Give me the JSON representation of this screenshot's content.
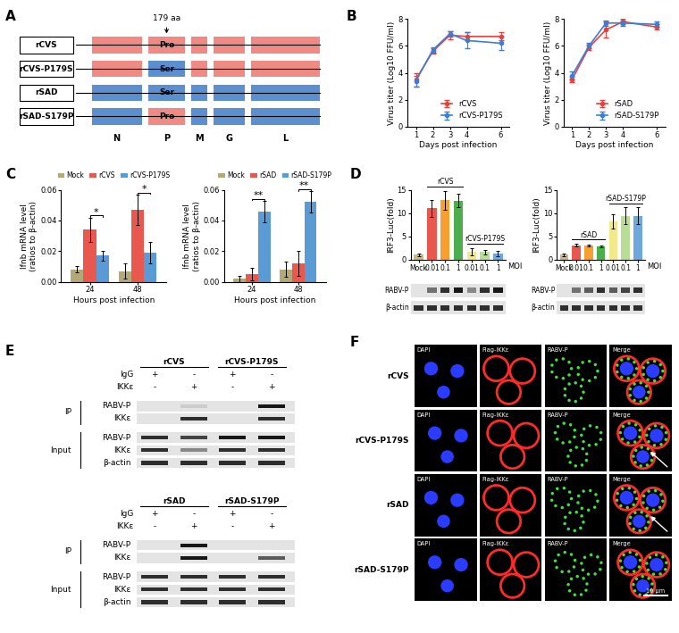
{
  "panel_labels": [
    "A",
    "B",
    "C",
    "D",
    "E",
    "F"
  ],
  "schematic": {
    "genes": [
      "N",
      "P",
      "M",
      "G",
      "L"
    ],
    "site_gene": "P",
    "site_label": "179 aa",
    "constructs": [
      {
        "name": "rCVS",
        "color": "#f08a84",
        "site": "Pro",
        "site_color": "#f08a84"
      },
      {
        "name": "rCVS-P179S",
        "color": "#f08a84",
        "site": "Ser",
        "site_color": "#5b8fd0"
      },
      {
        "name": "rSAD",
        "color": "#5b8fd0",
        "site": "Ser",
        "site_color": "#5b8fd0"
      },
      {
        "name": "rSAD-S179P",
        "color": "#5b8fd0",
        "site": "Pro",
        "site_color": "#f08a84"
      }
    ]
  },
  "chart_data": [
    {
      "type": "line",
      "x": [
        1,
        2,
        3,
        4,
        6
      ],
      "xlim": [
        0.5,
        6.5
      ],
      "xticks": [
        1,
        2,
        3,
        4,
        6
      ],
      "ylim": [
        0,
        8
      ],
      "yticks": [
        0,
        2,
        4,
        6,
        8
      ],
      "xlabel": "Days post infection",
      "ylabel": "Virus titer (Log10 FFU/ml)",
      "legend": "lower right",
      "series": [
        {
          "name": "rCVS",
          "color": "#e8403a",
          "marker": "circle",
          "values": [
            3.5,
            5.6,
            6.8,
            6.7,
            6.7
          ],
          "errors": [
            0.5,
            0.2,
            0.3,
            0.3,
            0.3
          ]
        },
        {
          "name": "rCVS-P179S",
          "color": "#3a7fd5",
          "marker": "circle",
          "values": [
            3.4,
            5.7,
            6.9,
            6.4,
            6.2
          ],
          "errors": [
            0.4,
            0.2,
            0.2,
            0.6,
            0.5
          ]
        }
      ]
    },
    {
      "type": "line",
      "x": [
        1,
        2,
        3,
        4,
        6
      ],
      "xlim": [
        0.5,
        6.5
      ],
      "xticks": [
        1,
        2,
        3,
        4,
        6
      ],
      "ylim": [
        0,
        8
      ],
      "yticks": [
        0,
        2,
        4,
        6,
        8
      ],
      "xlabel": "Days post infection",
      "ylabel": "Virus titer (Log10 FFU/ml)",
      "legend": "lower right",
      "series": [
        {
          "name": "rSAD",
          "color": "#e8403a",
          "marker": "circle",
          "values": [
            3.5,
            5.9,
            7.2,
            7.8,
            7.4
          ],
          "errors": [
            0.2,
            0.2,
            0.6,
            0.2,
            0.2
          ]
        },
        {
          "name": "rSAD-S179P",
          "color": "#3a7fd5",
          "marker": "circle",
          "values": [
            3.8,
            6.0,
            7.7,
            7.7,
            7.6
          ],
          "errors": [
            0.3,
            0.2,
            0.2,
            0.2,
            0.2
          ]
        }
      ]
    },
    {
      "type": "bar",
      "categories": [
        "24",
        "48"
      ],
      "ylim": [
        0,
        0.06
      ],
      "yticks": [
        {
          "value": 0,
          "label": "0.00"
        },
        0.02,
        0.04,
        0.06
      ],
      "xlabel": "Hours post infection",
      "ylabel": "Ifnb mRNA level\n(ratios to β-actin)",
      "legend": "upper center",
      "series": [
        {
          "name": "Mock",
          "color": "#b5a878",
          "values": [
            0.008,
            0.007
          ],
          "errors": [
            0.002,
            0.005
          ]
        },
        {
          "name": "rCVS",
          "color": "#e8584e",
          "values": [
            0.034,
            0.047
          ],
          "errors": [
            0.008,
            0.01
          ]
        },
        {
          "name": "rCVS-P179S",
          "color": "#5b9bd5",
          "values": [
            0.017,
            0.019
          ],
          "errors": [
            0.003,
            0.007
          ]
        }
      ],
      "significance": [
        {
          "category": "24",
          "text": "*"
        },
        {
          "category": "48",
          "text": "*"
        }
      ]
    },
    {
      "type": "bar",
      "categories": [
        "24",
        "48"
      ],
      "ylim": [
        0,
        0.06
      ],
      "yticks": [
        {
          "value": 0,
          "label": "0.00"
        },
        0.02,
        0.04,
        0.06
      ],
      "xlabel": "Hours post infection",
      "ylabel": "Ifnb mRNA level\n(ratios to β-actin)",
      "legend": "upper center",
      "series": [
        {
          "name": "Mock",
          "color": "#b5a878",
          "values": [
            0.002,
            0.008
          ],
          "errors": [
            0.002,
            0.005
          ]
        },
        {
          "name": "rSAD",
          "color": "#e8584e",
          "values": [
            0.005,
            0.012
          ],
          "errors": [
            0.004,
            0.008
          ]
        },
        {
          "name": "rSAD-S179P",
          "color": "#5b9bd5",
          "values": [
            0.046,
            0.052
          ],
          "errors": [
            0.007,
            0.007
          ]
        }
      ],
      "significance": [
        {
          "category": "24",
          "text": "**"
        },
        {
          "category": "48",
          "text": "**"
        }
      ]
    },
    {
      "type": "bar",
      "categories": [
        "Mock",
        "0.01",
        "0.1",
        "1",
        "0.01",
        "0.1",
        "1"
      ],
      "groups": [
        null,
        "rCVS",
        "rCVS",
        "rCVS",
        "rCVS-P179S",
        "rCVS-P179S",
        "rCVS-P179S"
      ],
      "values": [
        1.0,
        11.0,
        12.8,
        12.7,
        1.7,
        1.6,
        1.3
      ],
      "errors": [
        0.3,
        1.8,
        2.0,
        1.5,
        0.8,
        0.5,
        0.6
      ],
      "colors": [
        "#c8b88a",
        "#e8584e",
        "#f5a030",
        "#4cae4c",
        "#f3e98a",
        "#b9dd96",
        "#6fa8dc"
      ],
      "ylim": [
        0,
        15
      ],
      "yticks": [
        0,
        5,
        10,
        15
      ],
      "ylabel": "IRF3-Luc(fold)",
      "xlabel": "MOI"
    },
    {
      "type": "bar",
      "categories": [
        "Mock",
        "0.01",
        "0.1",
        "1",
        "0.01",
        "0.1",
        "1"
      ],
      "groups": [
        null,
        "rSAD",
        "rSAD",
        "rSAD",
        "rSAD-S179P",
        "rSAD-S179P",
        "rSAD-S179P"
      ],
      "values": [
        1.0,
        3.1,
        3.0,
        2.9,
        8.2,
        9.4,
        9.4
      ],
      "errors": [
        0.3,
        0.3,
        0.2,
        0.2,
        1.6,
        1.8,
        1.8
      ],
      "colors": [
        "#c8b88a",
        "#e8584e",
        "#f5a030",
        "#4cae4c",
        "#f3e98a",
        "#b9dd96",
        "#6fa8dc"
      ],
      "ylim": [
        0,
        15
      ],
      "yticks": [
        0,
        5,
        10,
        15
      ],
      "ylabel": "IRF3-Luc(fold)",
      "xlabel": "MOI"
    }
  ],
  "luciferase_blots": [
    {
      "rows": [
        {
          "name": "RABV-P",
          "bands": [
            0.0,
            0.5,
            0.8,
            0.9,
            0.4,
            0.8,
            0.9
          ]
        },
        {
          "name": "β-actin",
          "bands": [
            0.8,
            0.8,
            0.8,
            0.8,
            0.8,
            0.8,
            0.8
          ]
        }
      ]
    },
    {
      "rows": [
        {
          "name": "RABV-P",
          "bands": [
            0.0,
            0.5,
            0.6,
            0.8,
            0.6,
            0.7,
            0.8
          ]
        },
        {
          "name": "β-actin",
          "bands": [
            0.8,
            0.8,
            0.8,
            0.8,
            0.8,
            0.8,
            0.8
          ]
        }
      ]
    }
  ],
  "coip_blots": [
    {
      "groups": [
        "rCVS",
        "rCVS-P179S"
      ],
      "treatments": [
        {
          "name": "IgG",
          "signs": [
            "+",
            "-",
            "+",
            "-"
          ]
        },
        {
          "name": "IKKε",
          "signs": [
            "-",
            "+",
            "-",
            "+"
          ]
        }
      ],
      "sections": [
        {
          "name": "IP",
          "rows": [
            {
              "name": "RABV-P",
              "bands": [
                0.0,
                0.1,
                0.0,
                0.9
              ]
            },
            {
              "name": "IKKε",
              "bands": [
                0.0,
                0.8,
                0.0,
                0.8
              ]
            }
          ]
        },
        {
          "name": "Input",
          "rows": [
            {
              "name": "RABV-P",
              "bands": [
                0.8,
                0.7,
                0.9,
                0.9
              ]
            },
            {
              "name": "IKKε",
              "bands": [
                0.8,
                0.4,
                0.8,
                0.8
              ]
            },
            {
              "name": "β-actin",
              "bands": [
                0.8,
                0.8,
                0.8,
                0.8
              ]
            }
          ]
        }
      ]
    },
    {
      "groups": [
        "rSAD",
        "rSAD-S179P"
      ],
      "treatments": [
        {
          "name": "IgG",
          "signs": [
            "+",
            "-",
            "+",
            "-"
          ]
        },
        {
          "name": "IKKε",
          "signs": [
            "-",
            "+",
            "-",
            "+"
          ]
        }
      ],
      "sections": [
        {
          "name": "IP",
          "rows": [
            {
              "name": "RABV-P",
              "bands": [
                0.0,
                0.9,
                0.0,
                0.0
              ]
            },
            {
              "name": "IKKε",
              "bands": [
                0.0,
                0.9,
                0.0,
                0.6
              ]
            }
          ]
        },
        {
          "name": "Input",
          "rows": [
            {
              "name": "RABV-P",
              "bands": [
                0.8,
                0.8,
                0.8,
                0.8
              ]
            },
            {
              "name": "IKKε",
              "bands": [
                0.8,
                0.8,
                0.8,
                0.8
              ]
            },
            {
              "name": "β-actin",
              "bands": [
                0.8,
                0.8,
                0.8,
                0.8
              ]
            }
          ]
        }
      ]
    }
  ],
  "microscopy": {
    "channels": [
      "DAPI",
      "Flag-IKKε",
      "RABV-P",
      "Merge"
    ],
    "rows": [
      "rCVS",
      "rCVS-P179S",
      "rSAD",
      "rSAD-S179P"
    ],
    "scale_bar": "10 μm"
  }
}
